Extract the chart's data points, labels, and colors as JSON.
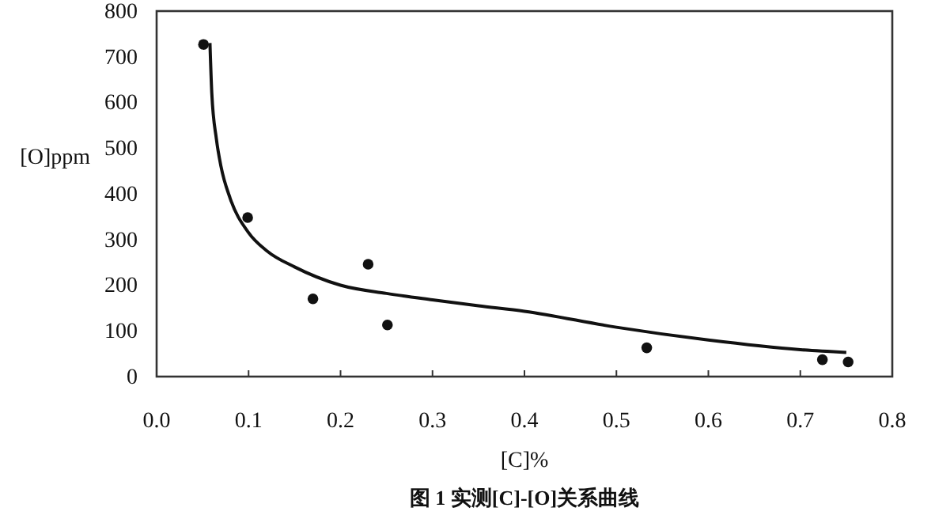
{
  "chart_data": {
    "type": "scatter",
    "title": "图 1 实测[C]-[O]关系曲线",
    "xlabel": "[C]%",
    "ylabel": "[O]ppm",
    "xlim": [
      0,
      0.8
    ],
    "xticks": [
      {
        "value": 0,
        "label": "0.0"
      },
      0.1,
      0.2,
      0.3,
      0.4,
      0.5,
      0.6,
      0.7,
      0.8
    ],
    "ylim": [
      0,
      800
    ],
    "yticks": [
      0,
      100,
      200,
      300,
      400,
      500,
      600,
      700,
      800
    ],
    "grid": false,
    "series": [
      {
        "color": "#111111",
        "marker": "circle",
        "x": [
          0.051,
          0.099,
          0.17,
          0.23,
          0.251,
          0.533,
          0.724,
          0.752
        ],
        "values": [
          727,
          348,
          170,
          246,
          113,
          63,
          37,
          32
        ]
      },
      {
        "type": "line",
        "color": "#111111",
        "marker": "none",
        "line_style": "solid",
        "x": [
          0.058,
          0.06,
          0.065,
          0.07,
          0.08,
          0.1,
          0.12,
          0.15,
          0.2,
          0.25,
          0.3,
          0.35,
          0.4,
          0.5,
          0.6,
          0.7,
          0.75
        ],
        "values": [
          730,
          620,
          520,
          460,
          390,
          315,
          275,
          240,
          200,
          182,
          168,
          155,
          143,
          108,
          80,
          59,
          53
        ]
      }
    ]
  }
}
